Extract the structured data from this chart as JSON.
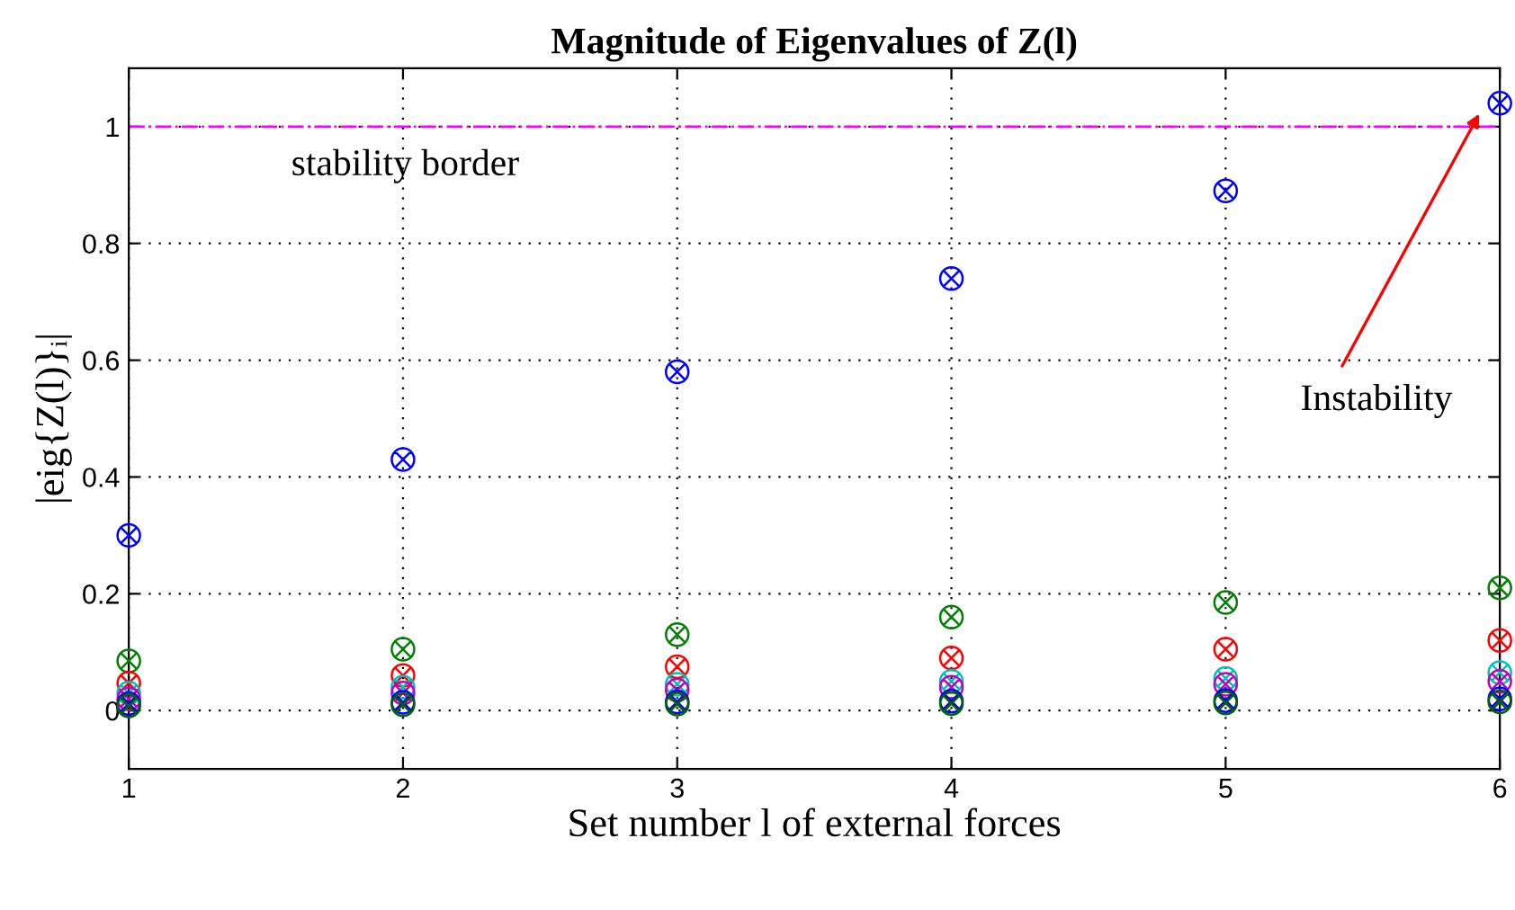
{
  "chart_data": {
    "type": "scatter",
    "title": "Magnitude of Eigenvalues of Z(l)",
    "xlabel": "Set number l of external forces",
    "ylabel": "|eig{Z(l)}ᵢ|",
    "x": [
      1,
      2,
      3,
      4,
      5,
      6
    ],
    "xlim": [
      1,
      6
    ],
    "xticks": [
      1,
      2,
      3,
      4,
      5,
      6
    ],
    "ylim": [
      -0.1,
      1.1
    ],
    "yticks": [
      0,
      0.2,
      0.4,
      0.6,
      0.8,
      1
    ],
    "grid": true,
    "marker": "cross",
    "series": [
      {
        "color": "#0000ff",
        "values": [
          0.3,
          0.43,
          0.58,
          0.74,
          0.89,
          1.04
        ]
      },
      {
        "color": "#008000",
        "values": [
          0.085,
          0.105,
          0.13,
          0.16,
          0.185,
          0.21
        ]
      },
      {
        "color": "#ff0000",
        "values": [
          0.047,
          0.06,
          0.075,
          0.09,
          0.105,
          0.12
        ]
      },
      {
        "color": "#00bfbf",
        "values": [
          0.03,
          0.04,
          0.045,
          0.05,
          0.055,
          0.065
        ]
      },
      {
        "color": "#bf00bf",
        "values": [
          0.02,
          0.03,
          0.035,
          0.04,
          0.045,
          0.05
        ]
      },
      {
        "color": "#0000ff",
        "values": [
          0.012,
          0.014,
          0.015,
          0.016,
          0.017,
          0.02
        ]
      },
      {
        "color": "#006400",
        "values": [
          0.008,
          0.01,
          0.011,
          0.012,
          0.013,
          0.015
        ]
      }
    ],
    "ref_lines": [
      {
        "axis": "y",
        "value": 1,
        "label": "stability border",
        "color": "#ff00ff",
        "line_style": "dashdot"
      }
    ],
    "annotations": [
      "Instability"
    ]
  }
}
